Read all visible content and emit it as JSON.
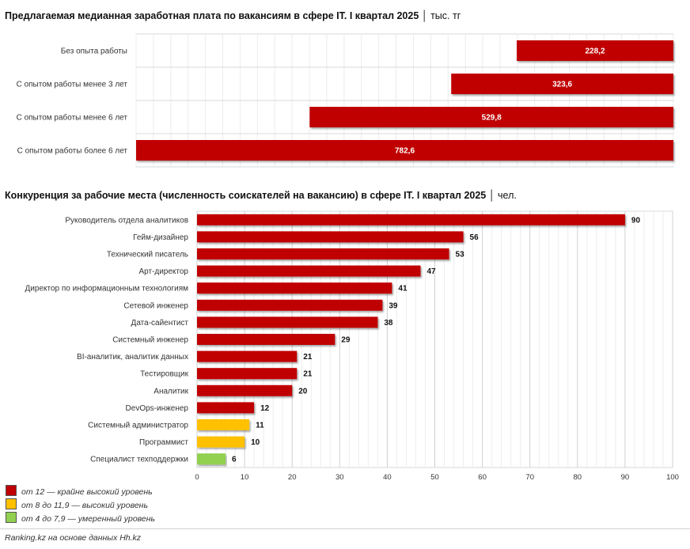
{
  "chart_data": [
    {
      "type": "bar",
      "orientation": "horizontal",
      "title": "Предлагаемая медианная заработная плата по вакансиям в сфере IT. I квартал 2025",
      "unit": "тыс. тг",
      "categories": [
        "Без опыта работы",
        "С опытом работы менее 3 лет",
        "С опытом работы менее 6 лет",
        "С опытом работы более 6 лет"
      ],
      "values": [
        228.2,
        323.6,
        529.8,
        782.6
      ],
      "value_labels": [
        "228,2",
        "323,6",
        "529,8",
        "782,6"
      ],
      "bar_alignment": "right",
      "xlim": [
        0,
        782.6
      ],
      "bar_color": "#c00000",
      "grid": true
    },
    {
      "type": "bar",
      "orientation": "horizontal",
      "title": "Конкуренция за рабочие места (численность соискателей на вакансию) в сфере IT. I квартал 2025",
      "unit": "чел.",
      "categories": [
        "Руководитель отдела аналитиков",
        "Гейм-дизайнер",
        "Технический писатель",
        "Арт-директор",
        "Директор по информационным технологиям",
        "Сетевой инженер",
        "Дата-сайентист",
        "Системный инженер",
        "BI-аналитик, аналитик данных",
        "Тестировщик",
        "Аналитик",
        "DevOps-инженер",
        "Системный администратор",
        "Программист",
        "Специалист техподдержки"
      ],
      "values": [
        90,
        56,
        53,
        47,
        41,
        39,
        38,
        29,
        21,
        21,
        20,
        12,
        11,
        10,
        6
      ],
      "value_labels": [
        "90",
        "56",
        "53",
        "47",
        "41",
        "39",
        "38",
        "29",
        "21",
        "21",
        "20",
        "12",
        "11",
        "10",
        "6"
      ],
      "levels": [
        "high",
        "high",
        "high",
        "high",
        "high",
        "high",
        "high",
        "high",
        "high",
        "high",
        "high",
        "high",
        "medium",
        "medium",
        "moderate"
      ],
      "xlim": [
        0,
        100
      ],
      "xticks": [
        0,
        10,
        20,
        30,
        40,
        50,
        60,
        70,
        80,
        90,
        100
      ],
      "grid": true
    }
  ],
  "legend": [
    {
      "key": "high",
      "label": "от 12 — крайне высокий уровень",
      "color": "#c00000"
    },
    {
      "key": "medium",
      "label": "от 8 до 11,9 — высокий уровень",
      "color": "#ffc000"
    },
    {
      "key": "moderate",
      "label": "от 4 до 7,9 — умеренный уровень",
      "color": "#92d050"
    }
  ],
  "footer": "Ranking.kz на основе данных Hh.kz"
}
